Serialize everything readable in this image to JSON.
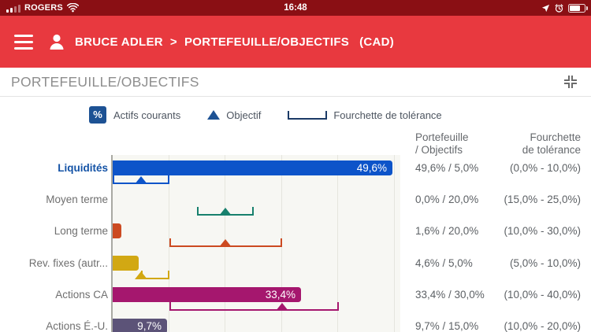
{
  "status_bar": {
    "carrier": "ROGERS",
    "time": "16:48"
  },
  "nav": {
    "user": "BRUCE ADLER",
    "separator": ">",
    "page": "PORTEFEUILLE/OBJECTIFS",
    "currency": "(CAD)"
  },
  "section": {
    "title": "PORTEFEUILLE/OBJECTIFS"
  },
  "legend": {
    "items": [
      {
        "icon": "percent-box-icon",
        "glyph": "%",
        "label": "Actifs courants"
      },
      {
        "icon": "objective-triangle-icon",
        "label": "Objectif"
      },
      {
        "icon": "tolerance-bracket-icon",
        "label": "Fourchette de tolérance"
      }
    ]
  },
  "columns": {
    "portfolio_line1": "Portefeuille",
    "portfolio_line2": "/ Objectifs",
    "tolerance_line1": "Fourchette",
    "tolerance_line2": "de tolérance"
  },
  "icons": {
    "hamburger": "menu-icon",
    "person": "user-icon",
    "collapse": "exit-fullscreen-icon",
    "status_right": [
      "location-arrow-icon",
      "alarm-clock-icon",
      "battery-icon"
    ],
    "status_left": [
      "signal-bars-icon",
      "wifi-icon"
    ]
  },
  "colors": {
    "status_bar_bg": "#8a0f14",
    "nav_bg": "#e8393f",
    "legend_blue": "#1d5294",
    "bracket_navy": "#1b3a66",
    "emphasis_label": "#1453a6",
    "plot_bg": "#f7f7f3"
  },
  "chart_data": {
    "type": "bar",
    "orientation": "horizontal",
    "unit": "percent",
    "title": "PORTEFEUILLE/OBJECTIFS",
    "x_axis": {
      "min": 0,
      "max": 50,
      "gridline_step": 10,
      "gridlines_visible": true,
      "tick_labels_visible": false
    },
    "legend_position": "top",
    "rows": [
      {
        "label": "Liquidités",
        "emphasis": true,
        "value_pct": 49.6,
        "objective_pct": 5.0,
        "tolerance_min_pct": 0.0,
        "tolerance_max_pct": 10.0,
        "bar_label": "49,6%",
        "portfolio_vs_objective": "49,6% / 5,0%",
        "tolerance_range": "(0,0% - 10,0%)",
        "color": "#0d54c9"
      },
      {
        "label": "Moyen terme",
        "emphasis": false,
        "value_pct": 0.0,
        "objective_pct": 20.0,
        "tolerance_min_pct": 15.0,
        "tolerance_max_pct": 25.0,
        "bar_label": "",
        "portfolio_vs_objective": "0,0% / 20,0%",
        "tolerance_range": "(15,0% - 25,0%)",
        "color": "#17806d"
      },
      {
        "label": "Long terme",
        "emphasis": false,
        "value_pct": 1.6,
        "objective_pct": 20.0,
        "tolerance_min_pct": 10.0,
        "tolerance_max_pct": 30.0,
        "bar_label": "",
        "portfolio_vs_objective": "1,6% / 20,0%",
        "tolerance_range": "(10,0% - 30,0%)",
        "color": "#cc4a21"
      },
      {
        "label": "Rev. fixes (autr...",
        "emphasis": false,
        "value_pct": 4.6,
        "objective_pct": 5.0,
        "tolerance_min_pct": 5.0,
        "tolerance_max_pct": 10.0,
        "bar_label": "",
        "portfolio_vs_objective": "4,6% / 5,0%",
        "tolerance_range": "(5,0% - 10,0%)",
        "color": "#d2a813"
      },
      {
        "label": "Actions CA",
        "emphasis": false,
        "value_pct": 33.4,
        "objective_pct": 30.0,
        "tolerance_min_pct": 10.0,
        "tolerance_max_pct": 40.0,
        "bar_label": "33,4%",
        "portfolio_vs_objective": "33,4% / 30,0%",
        "tolerance_range": "(10,0% - 40,0%)",
        "color": "#a5176e"
      },
      {
        "label": "Actions É.-U.",
        "emphasis": false,
        "value_pct": 9.7,
        "objective_pct": 15.0,
        "tolerance_min_pct": 10.0,
        "tolerance_max_pct": 20.0,
        "bar_label": "9,7%",
        "portfolio_vs_objective": "9,7% / 15,0%",
        "tolerance_range": "(10,0% - 20,0%)",
        "color": "#5c5378"
      }
    ]
  }
}
